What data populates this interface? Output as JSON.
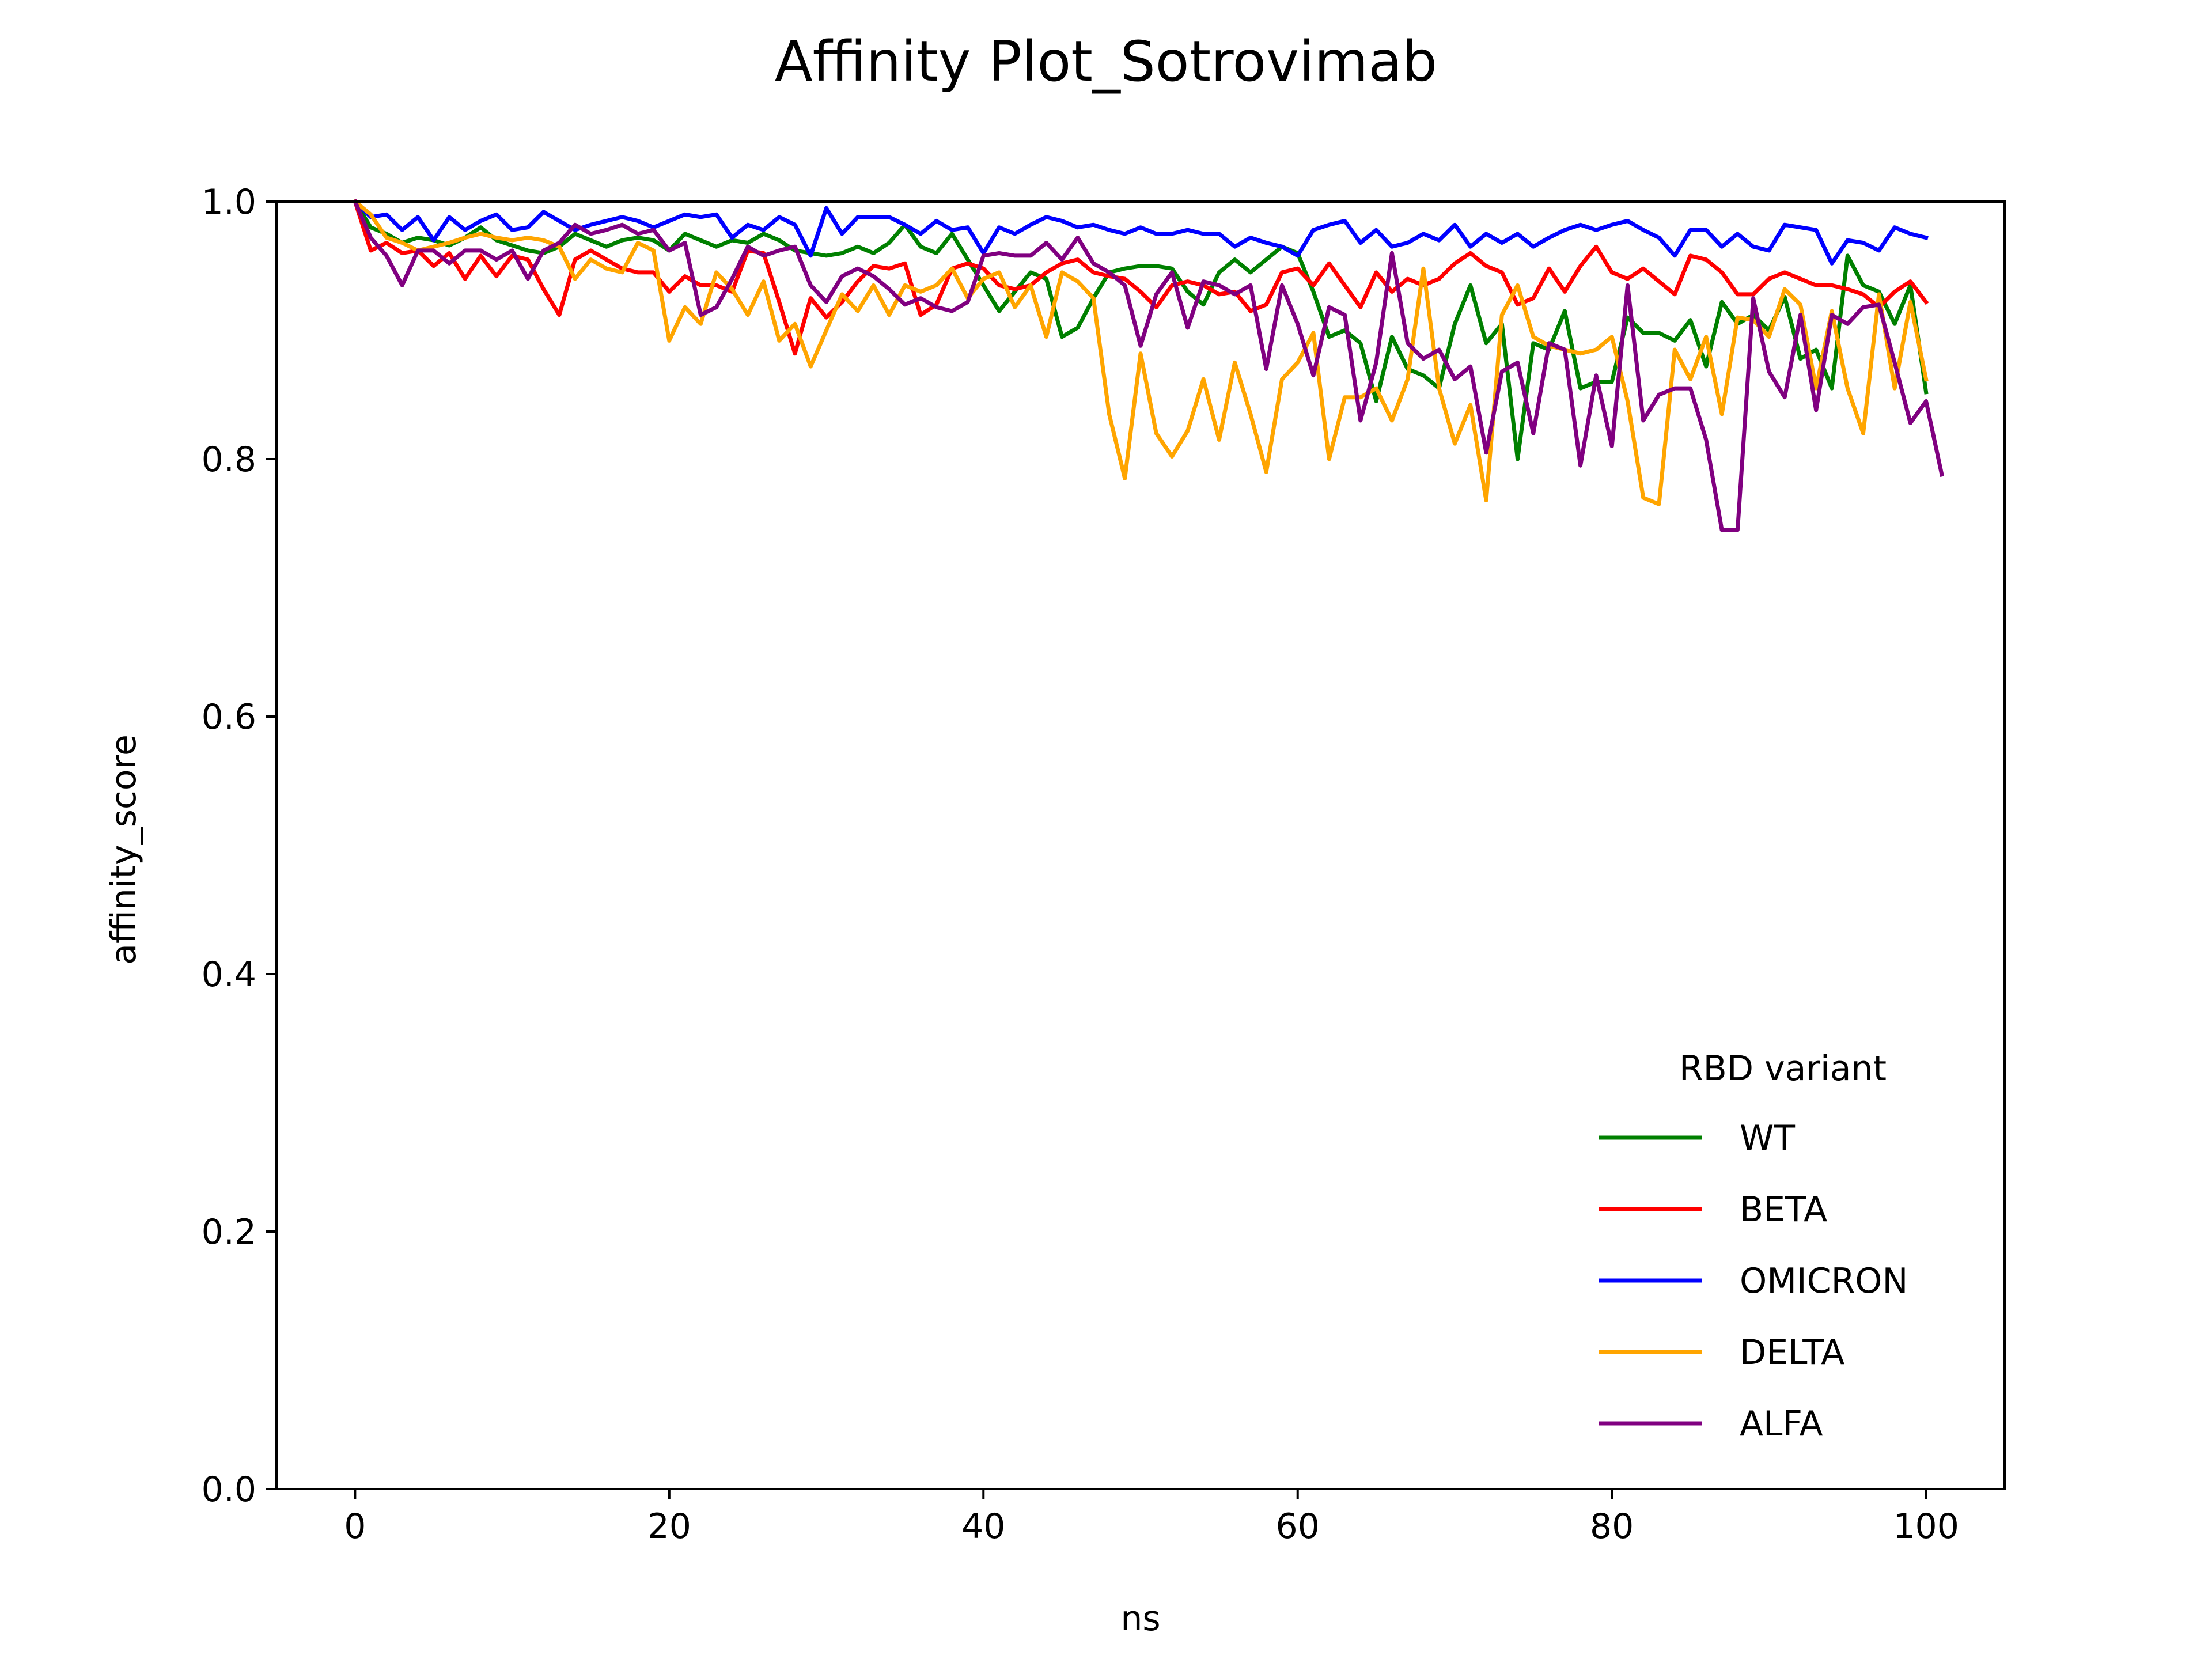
{
  "chart_data": {
    "type": "line",
    "title": "Affinity Plot_Sotrovimab",
    "xlabel": "ns",
    "ylabel": "affinity_score",
    "xlim": [
      -5,
      105
    ],
    "ylim": [
      0.0,
      1.0
    ],
    "xticks": [
      0,
      20,
      40,
      60,
      80,
      100
    ],
    "xtick_labels": [
      "0",
      "20",
      "40",
      "60",
      "80",
      "100"
    ],
    "yticks": [
      0.0,
      0.2,
      0.4,
      0.6,
      0.8,
      1.0
    ],
    "ytick_labels": [
      "0.0",
      "0.2",
      "0.4",
      "0.6",
      "0.8",
      "1.0"
    ],
    "grid": false,
    "legend": {
      "title": "RBD variant",
      "placement": "lower-right"
    },
    "x": {
      "start": 0,
      "end": 100,
      "step": 1
    },
    "series": [
      {
        "name": "WT",
        "color": "#008000",
        "values": [
          1.0,
          0.98,
          0.975,
          0.968,
          0.972,
          0.97,
          0.966,
          0.972,
          0.98,
          0.97,
          0.966,
          0.962,
          0.96,
          0.965,
          0.975,
          0.97,
          0.965,
          0.97,
          0.972,
          0.97,
          0.962,
          0.975,
          0.97,
          0.965,
          0.97,
          0.968,
          0.975,
          0.97,
          0.962,
          0.96,
          0.958,
          0.96,
          0.965,
          0.96,
          0.968,
          0.982,
          0.965,
          0.96,
          0.975,
          0.955,
          0.935,
          0.915,
          0.93,
          0.945,
          0.94,
          0.895,
          0.902,
          0.925,
          0.945,
          0.948,
          0.95,
          0.95,
          0.948,
          0.93,
          0.92,
          0.945,
          0.955,
          0.945,
          0.955,
          0.965,
          0.96,
          0.93,
          0.895,
          0.9,
          0.89,
          0.845,
          0.895,
          0.87,
          0.865,
          0.855,
          0.905,
          0.935,
          0.89,
          0.905,
          0.8,
          0.89,
          0.885,
          0.915,
          0.855,
          0.86,
          0.86,
          0.91,
          0.898,
          0.898,
          0.892,
          0.908,
          0.872,
          0.922,
          0.905,
          0.912,
          0.9,
          0.926,
          0.878,
          0.885,
          0.855,
          0.958,
          0.935,
          0.93,
          0.905,
          0.935,
          0.852
        ]
      },
      {
        "name": "BETA",
        "color": "#ff0000",
        "values": [
          1.0,
          0.962,
          0.968,
          0.96,
          0.962,
          0.95,
          0.96,
          0.94,
          0.958,
          0.942,
          0.958,
          0.955,
          0.932,
          0.912,
          0.955,
          0.962,
          0.955,
          0.948,
          0.945,
          0.945,
          0.93,
          0.942,
          0.935,
          0.935,
          0.93,
          0.962,
          0.96,
          0.922,
          0.882,
          0.925,
          0.91,
          0.922,
          0.938,
          0.95,
          0.948,
          0.952,
          0.912,
          0.92,
          0.948,
          0.952,
          0.948,
          0.935,
          0.932,
          0.935,
          0.945,
          0.952,
          0.955,
          0.945,
          0.942,
          0.94,
          0.93,
          0.918,
          0.935,
          0.938,
          0.935,
          0.928,
          0.93,
          0.915,
          0.92,
          0.945,
          0.948,
          0.935,
          0.952,
          0.935,
          0.918,
          0.945,
          0.93,
          0.94,
          0.935,
          0.94,
          0.952,
          0.96,
          0.95,
          0.945,
          0.92,
          0.925,
          0.948,
          0.93,
          0.95,
          0.965,
          0.945,
          0.94,
          0.948,
          0.938,
          0.928,
          0.958,
          0.955,
          0.945,
          0.928,
          0.928,
          0.94,
          0.945,
          0.94,
          0.935,
          0.935,
          0.932,
          0.928,
          0.918,
          0.93,
          0.938,
          0.922
        ]
      },
      {
        "name": "OMICRON",
        "color": "#0000ff",
        "values": [
          1.0,
          0.988,
          0.99,
          0.978,
          0.988,
          0.97,
          0.988,
          0.978,
          0.985,
          0.99,
          0.978,
          0.98,
          0.992,
          0.985,
          0.978,
          0.982,
          0.985,
          0.988,
          0.985,
          0.98,
          0.985,
          0.99,
          0.988,
          0.99,
          0.972,
          0.982,
          0.978,
          0.988,
          0.982,
          0.958,
          0.995,
          0.975,
          0.988,
          0.988,
          0.988,
          0.982,
          0.975,
          0.985,
          0.978,
          0.98,
          0.96,
          0.98,
          0.975,
          0.982,
          0.988,
          0.985,
          0.98,
          0.982,
          0.978,
          0.975,
          0.98,
          0.975,
          0.975,
          0.978,
          0.975,
          0.975,
          0.965,
          0.972,
          0.968,
          0.965,
          0.958,
          0.978,
          0.982,
          0.985,
          0.968,
          0.978,
          0.965,
          0.968,
          0.975,
          0.97,
          0.982,
          0.965,
          0.975,
          0.968,
          0.975,
          0.965,
          0.972,
          0.978,
          0.982,
          0.978,
          0.982,
          0.985,
          0.978,
          0.972,
          0.958,
          0.978,
          0.978,
          0.965,
          0.975,
          0.965,
          0.962,
          0.982,
          0.98,
          0.978,
          0.952,
          0.97,
          0.968,
          0.962,
          0.98,
          0.975,
          0.972
        ]
      },
      {
        "name": "DELTA",
        "color": "#ffa500",
        "values": [
          1.0,
          0.99,
          0.972,
          0.968,
          0.962,
          0.965,
          0.968,
          0.972,
          0.975,
          0.972,
          0.97,
          0.972,
          0.97,
          0.965,
          0.94,
          0.955,
          0.948,
          0.945,
          0.968,
          0.962,
          0.892,
          0.918,
          0.905,
          0.945,
          0.932,
          0.912,
          0.938,
          0.892,
          0.905,
          0.872,
          0.9,
          0.928,
          0.915,
          0.935,
          0.912,
          0.935,
          0.93,
          0.935,
          0.948,
          0.925,
          0.94,
          0.945,
          0.918,
          0.935,
          0.895,
          0.945,
          0.938,
          0.925,
          0.835,
          0.785,
          0.882,
          0.82,
          0.802,
          0.822,
          0.862,
          0.815,
          0.875,
          0.835,
          0.79,
          0.862,
          0.875,
          0.898,
          0.8,
          0.848,
          0.848,
          0.855,
          0.83,
          0.862,
          0.948,
          0.855,
          0.812,
          0.842,
          0.768,
          0.912,
          0.935,
          0.895,
          0.888,
          0.885,
          0.882,
          0.885,
          0.895,
          0.845,
          0.77,
          0.765,
          0.885,
          0.862,
          0.895,
          0.835,
          0.91,
          0.908,
          0.895,
          0.932,
          0.92,
          0.855,
          0.915,
          0.855,
          0.82,
          0.928,
          0.855,
          0.922,
          0.862
        ]
      },
      {
        "name": "ALFA",
        "color": "#800080",
        "values": [
          1.0,
          0.972,
          0.958,
          0.935,
          0.962,
          0.962,
          0.952,
          0.962,
          0.962,
          0.955,
          0.962,
          0.94,
          0.962,
          0.968,
          0.982,
          0.975,
          0.978,
          0.982,
          0.975,
          0.978,
          0.962,
          0.968,
          0.912,
          0.918,
          0.94,
          0.965,
          0.958,
          0.962,
          0.965,
          0.935,
          0.922,
          0.942,
          0.948,
          0.942,
          0.932,
          0.92,
          0.925,
          0.918,
          0.915,
          0.922,
          0.958,
          0.96,
          0.958,
          0.958,
          0.968,
          0.955,
          0.972,
          0.952,
          0.945,
          0.935,
          0.888,
          0.928,
          0.945,
          0.902,
          0.938,
          0.935,
          0.928,
          0.935,
          0.87,
          0.935,
          0.905,
          0.865,
          0.918,
          0.912,
          0.83,
          0.875,
          0.96,
          0.89,
          0.878,
          0.885,
          0.862,
          0.872,
          0.805,
          0.868,
          0.875,
          0.82,
          0.89,
          0.885,
          0.795,
          0.865,
          0.81,
          0.935,
          0.83,
          0.85,
          0.855,
          0.855,
          0.815,
          0.745,
          0.745,
          0.925,
          0.868,
          0.848,
          0.912,
          0.838,
          0.912,
          0.905,
          0.918,
          0.92,
          0.875,
          0.828,
          0.845,
          0.788
        ]
      }
    ]
  }
}
